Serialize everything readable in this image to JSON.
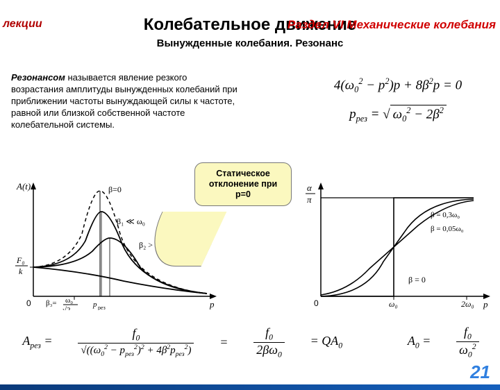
{
  "header": {
    "left": "лекции",
    "right": "Раздел VI Механические колебания",
    "title": "Колебательное движение",
    "subtitle": "Вынужденные колебания. Резонанс"
  },
  "definition": {
    "term": "Резонансом",
    "text": " называется явление резкого возрастания амплитуды вынужденных колебаний при приближении частоты вынуждающей силы к частоте, равной или близкой собственной частоте колебательной системы."
  },
  "callout": {
    "line1": "Статическое",
    "line2": "отклонение",
    "line3": "при",
    "line4": "p=0"
  },
  "equations": {
    "eq1_html": "4(ω<sub>0</sub><sup>2</sup> − p<sup>2</sup>)p + 8β<sup>2</sup>p = 0",
    "eq2_lhs": "p<sub>рез</sub> = ",
    "eq2_rhs": "ω<sub>0</sub><sup>2</sup> − 2β<sup>2</sup>"
  },
  "chart1": {
    "type": "line",
    "ylabel": "A(t)",
    "xlabel": "p",
    "label_fontsize": 13,
    "axis_color": "#000000",
    "curves": [
      {
        "label": "β=0",
        "style": "dashed",
        "peak_x": 0.42,
        "peak_y": 1.0
      },
      {
        "label": "β₁ ≪ ω₀",
        "style": "solid",
        "peak_x": 0.42,
        "peak_y": 0.78
      },
      {
        "label": "β₂ > β₁",
        "style": "solid",
        "peak_x": 0.44,
        "peak_y": 0.55
      },
      {
        "label": "",
        "style": "solid",
        "peak_x": 0.0,
        "peak_y": 0.22
      }
    ],
    "y_intercept_label": {
      "num": "F₀",
      "den": "k"
    },
    "x_tick1": {
      "num": "ω₀",
      "den": "√2",
      "prefix": "β₃="
    },
    "x_tick2": "p_рез",
    "background_color": "#ffffff"
  },
  "chart2": {
    "type": "line",
    "ylabel_num": "α",
    "ylabel_den": "π",
    "xlabel": "p",
    "x_ticks": [
      "0",
      "ω₀",
      "2ω₀"
    ],
    "curves": [
      {
        "label": "β = 0,3ω₀",
        "midpoint": 0.5
      },
      {
        "label": "β = 0,05ω₀",
        "midpoint": 0.5
      },
      {
        "label": "β = 0",
        "midpoint": 0.5,
        "step": true
      }
    ],
    "axis_color": "#000000",
    "background_color": "#ffffff"
  },
  "bottom_equation": {
    "lhs": "A<sub>рез</sub> =",
    "part1_num": "f<sub>0</sub>",
    "part1_den": "√((ω<sub>0</sub><sup>2</sup> − p<sub>рез</sub><sup>2</sup>)<sup>2</sup> + 4β<sup>2</sup>p<sub>рез</sub><sup>2</sup>)",
    "part2_num": "f<sub>0</sub>",
    "part2_den": "2βω<sub>0</sub>",
    "part2_rhs": " = QA<sub>0</sub>",
    "part3_lhs": "A<sub>0</sub> = ",
    "part3_num": "f<sub>0</sub>",
    "part3_den": "ω<sub>0</sub><sup>2</sup>"
  },
  "page_number": "21",
  "colors": {
    "header_red": "#b00000",
    "header_shadow": "#5050c8",
    "callout_bg": "#fbf8bf",
    "callout_border": "#777777",
    "page_num": "#3080e0",
    "bottom_bar_start": "#0a3a7a",
    "bottom_bar_end": "#1560bd"
  }
}
